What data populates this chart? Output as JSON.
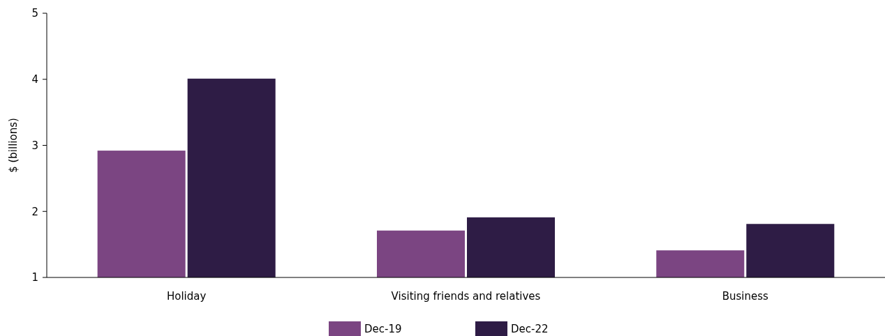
{
  "chart_data": {
    "type": "bar",
    "ylabel": "$ (billions)",
    "categories": [
      "Holiday",
      "Visiting friends and relatives",
      "Business"
    ],
    "series": [
      {
        "name": "Dec-19",
        "color": "#7b4582",
        "values": [
          2.92,
          1.71,
          1.41
        ]
      },
      {
        "name": "Dec-22",
        "color": "#2e1c45",
        "values": [
          4.01,
          1.91,
          1.81
        ]
      }
    ],
    "ylim": [
      1,
      5
    ],
    "yticks": [
      1,
      2,
      3,
      4,
      5
    ],
    "grid": false,
    "legend": "bottom"
  }
}
